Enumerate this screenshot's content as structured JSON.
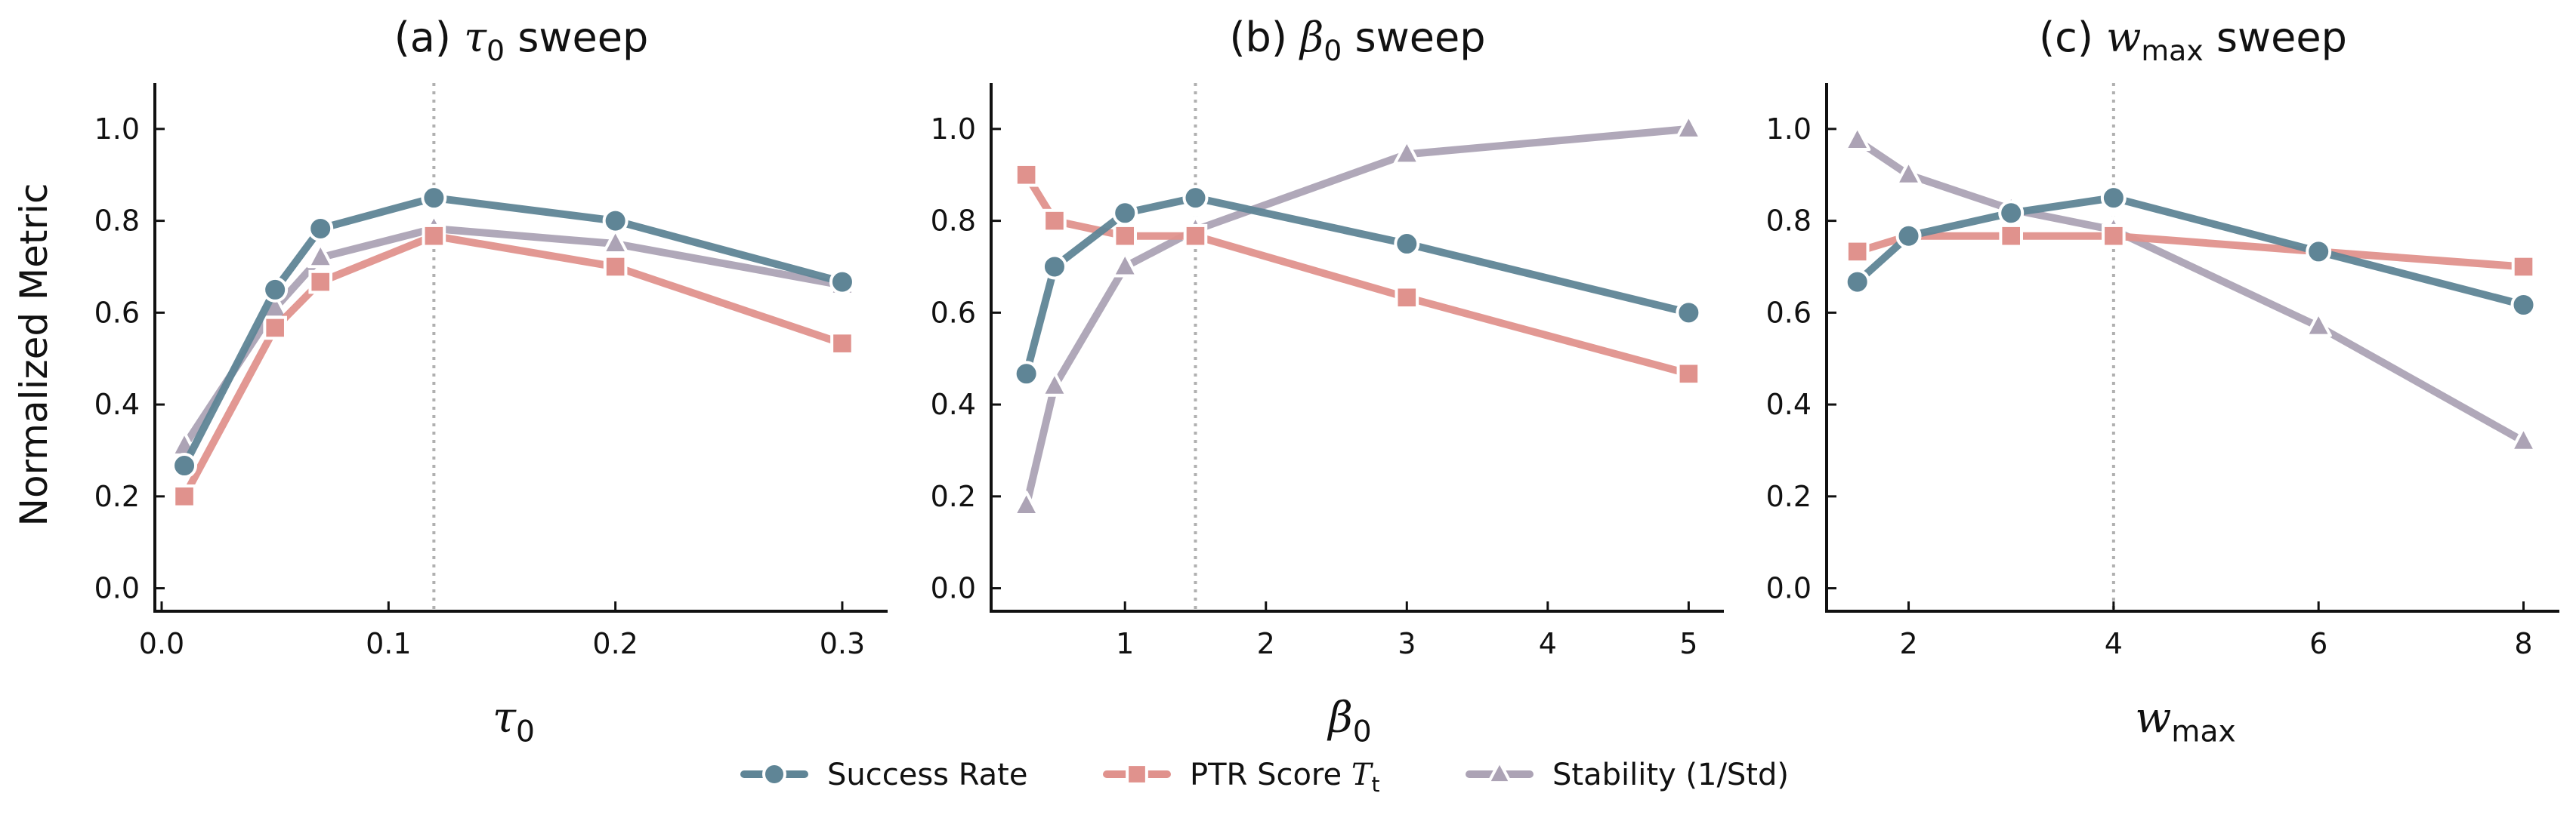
{
  "chart_data": [
    {
      "type": "line",
      "title": "(a) τ0 sweep",
      "title_parts": {
        "prefix": "(a) ",
        "symbol": "τ",
        "sub": "0",
        "suffix": " sweep"
      },
      "xlabel": {
        "symbol": "τ",
        "sub": "0"
      },
      "ylabel": "Normalized Metric",
      "xlim": [
        -0.003,
        0.32
      ],
      "ylim": [
        -0.05,
        1.1
      ],
      "xticks": [
        0.0,
        0.1,
        0.2,
        0.3
      ],
      "xtick_labels": [
        "0.0",
        "0.1",
        "0.2",
        "0.3"
      ],
      "yticks": [
        0.0,
        0.2,
        0.4,
        0.6,
        0.8,
        1.0
      ],
      "ytick_labels": [
        "0.0",
        "0.2",
        "0.4",
        "0.6",
        "0.8",
        "1.0"
      ],
      "vline": 0.12,
      "x": [
        0.01,
        0.05,
        0.07,
        0.12,
        0.2,
        0.3
      ],
      "series": [
        {
          "name": "Success Rate",
          "values": [
            0.267,
            0.65,
            0.783,
            0.85,
            0.8,
            0.667
          ]
        },
        {
          "name": "PTR Score T_t",
          "values": [
            0.2,
            0.567,
            0.667,
            0.767,
            0.7,
            0.533
          ]
        },
        {
          "name": "Stability (1/Std)",
          "values": [
            0.31,
            0.61,
            0.72,
            0.783,
            0.75,
            0.66
          ]
        }
      ]
    },
    {
      "type": "line",
      "title": "(b) β0 sweep",
      "title_parts": {
        "prefix": "(b) ",
        "symbol": "β",
        "sub": "0",
        "suffix": " sweep"
      },
      "xlabel": {
        "symbol": "β",
        "sub": "0"
      },
      "ylabel": "",
      "xlim": [
        0.05,
        5.25
      ],
      "ylim": [
        -0.05,
        1.1
      ],
      "xticks": [
        1,
        2,
        3,
        4,
        5
      ],
      "xtick_labels": [
        "1",
        "2",
        "3",
        "4",
        "5"
      ],
      "yticks": [
        0.0,
        0.2,
        0.4,
        0.6,
        0.8,
        1.0
      ],
      "ytick_labels": [
        "0.0",
        "0.2",
        "0.4",
        "0.6",
        "0.8",
        "1.0"
      ],
      "vline": 1.5,
      "x": [
        0.3,
        0.5,
        1,
        1.5,
        3,
        5
      ],
      "series": [
        {
          "name": "Success Rate",
          "values": [
            0.467,
            0.7,
            0.817,
            0.85,
            0.75,
            0.6
          ]
        },
        {
          "name": "PTR Score T_t",
          "values": [
            0.9,
            0.8,
            0.767,
            0.767,
            0.633,
            0.467
          ]
        },
        {
          "name": "Stability (1/Std)",
          "values": [
            0.18,
            0.44,
            0.7,
            0.78,
            0.945,
            1.0
          ]
        }
      ]
    },
    {
      "type": "line",
      "title": "(c) wmax sweep",
      "title_parts": {
        "prefix": "(c) ",
        "symbol": "w",
        "sub": "max",
        "suffix": " sweep"
      },
      "xlabel": {
        "symbol": "w",
        "sub": "max"
      },
      "ylabel": "",
      "xlim": [
        1.2,
        8.35
      ],
      "ylim": [
        -0.05,
        1.1
      ],
      "xticks": [
        2,
        4,
        6,
        8
      ],
      "xtick_labels": [
        "2",
        "4",
        "6",
        "8"
      ],
      "yticks": [
        0.0,
        0.2,
        0.4,
        0.6,
        0.8,
        1.0
      ],
      "ytick_labels": [
        "0.0",
        "0.2",
        "0.4",
        "0.6",
        "0.8",
        "1.0"
      ],
      "vline": 4,
      "x": [
        1.5,
        2,
        3,
        4,
        6,
        8
      ],
      "series": [
        {
          "name": "Success Rate",
          "values": [
            0.667,
            0.767,
            0.817,
            0.85,
            0.733,
            0.617
          ]
        },
        {
          "name": "PTR Score T_t",
          "values": [
            0.733,
            0.767,
            0.767,
            0.767,
            0.733,
            0.7
          ]
        },
        {
          "name": "Stability (1/Std)",
          "values": [
            0.975,
            0.9,
            0.825,
            0.78,
            0.57,
            0.32
          ]
        }
      ]
    }
  ],
  "legend": {
    "placement": "bottom-center",
    "items": [
      {
        "label": "Success Rate",
        "marker": "circle",
        "color": "#5f8596"
      },
      {
        "label": "PTR Score ",
        "label_symbol": "T",
        "label_sub": "t",
        "marker": "square",
        "color": "#e0928d"
      },
      {
        "label": "Stability (1/Std)",
        "marker": "triangle",
        "color": "#aca3b5"
      }
    ]
  },
  "colors": {
    "success_rate": "#5f8596",
    "ptr_score": "#e0928d",
    "stability": "#aca3b5",
    "vline": "#b0b0b0",
    "axis": "#111111"
  }
}
